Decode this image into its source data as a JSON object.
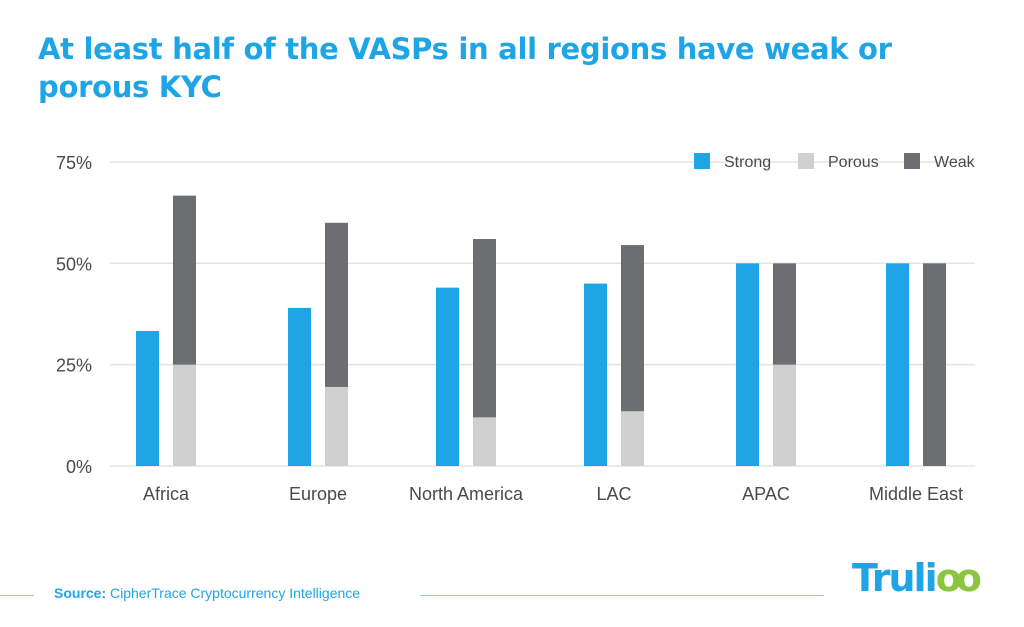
{
  "title": "At least half of the VASPs in all regions have weak or porous KYC",
  "source": {
    "label": "Source:",
    "text": " CipherTrace Cryptocurrency Intelligence"
  },
  "logo": {
    "main": "Truli",
    "accent": "oo"
  },
  "colors": {
    "strong": "#1ea5e6",
    "porous": "#cfcfcf",
    "weak": "#6d6e71",
    "title": "#1ea5e6",
    "grid": "#e3e3e3"
  },
  "chart_data": {
    "type": "bar",
    "title": "At least half of the VASPs in all regions have weak or porous KYC",
    "xlabel": "",
    "ylabel": "",
    "categories": [
      "Africa",
      "Europe",
      "North America",
      "LAC",
      "APAC",
      "Middle East"
    ],
    "series": [
      {
        "name": "Strong",
        "values": [
          33.3,
          39,
          44,
          45,
          50,
          50
        ],
        "stack": "a"
      },
      {
        "name": "Porous",
        "values": [
          25,
          19.5,
          12,
          13.5,
          25,
          0
        ],
        "stack": "b"
      },
      {
        "name": "Weak",
        "values": [
          41.7,
          40.5,
          44,
          41,
          25,
          50
        ],
        "stack": "b"
      }
    ],
    "yticks": [
      "0%",
      "25%",
      "50%",
      "75%"
    ],
    "ytick_values": [
      0,
      25,
      50,
      75
    ],
    "ylim": [
      0,
      75
    ],
    "grid": true,
    "legend": "top-right"
  }
}
